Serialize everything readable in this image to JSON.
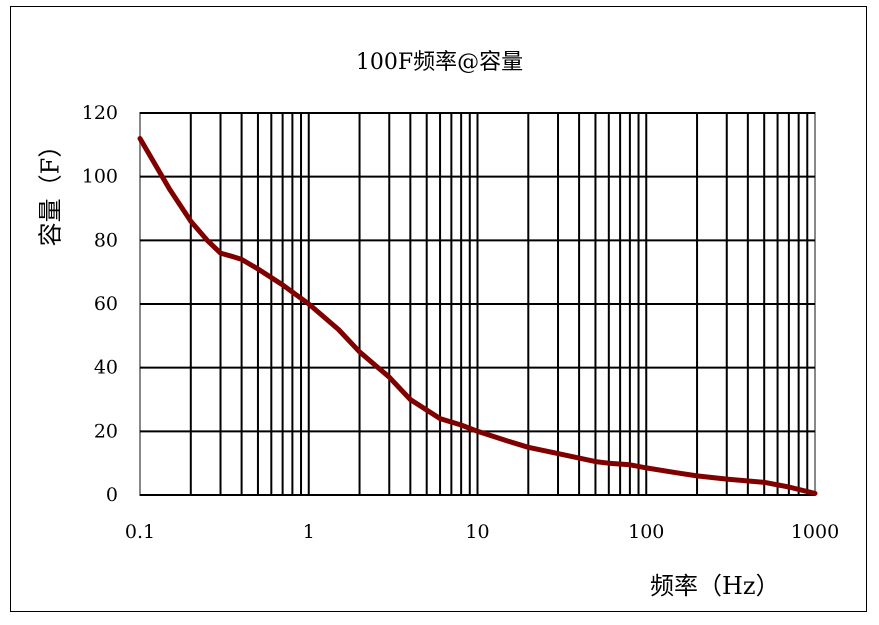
{
  "chart_data": {
    "type": "line",
    "title": "100F频率@容量",
    "xlabel": "频率（Hz）",
    "ylabel": "容量（F）",
    "xscale": "log",
    "xlim": [
      0.1,
      1000
    ],
    "ylim": [
      0,
      120
    ],
    "grid": true,
    "xticks": [
      "0.1",
      "1",
      "10",
      "100",
      "1000"
    ],
    "yticks": [
      "0",
      "20",
      "40",
      "60",
      "80",
      "100",
      "120"
    ],
    "line_color": "#800000",
    "x": [
      0.1,
      0.15,
      0.2,
      0.25,
      0.3,
      0.35,
      0.4,
      0.5,
      0.7,
      1,
      1.5,
      2,
      3,
      4,
      6,
      8,
      10,
      15,
      20,
      30,
      50,
      60,
      80,
      100,
      150,
      200,
      300,
      500,
      700,
      1000
    ],
    "y": [
      112,
      96,
      86,
      80,
      76,
      75,
      74,
      71,
      66,
      60,
      52,
      45,
      37,
      30,
      24,
      22,
      20,
      17,
      15,
      13,
      10.5,
      10,
      9.5,
      8.5,
      7,
      6,
      5,
      4,
      2.5,
      0.5
    ]
  }
}
